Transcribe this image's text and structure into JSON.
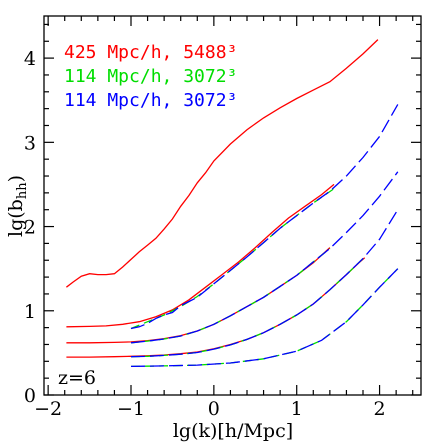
{
  "chart_data": {
    "type": "line",
    "title": "",
    "xlabel": "lg(k)[h/Mpc]",
    "ylabel": "lg(b",
    "ylabel_sub": "hh",
    "ylabel_close": ")",
    "xlim": [
      -2.05,
      2.5
    ],
    "ylim": [
      0,
      4.5
    ],
    "x_ticks": [
      -2,
      -1,
      0,
      1,
      2
    ],
    "x_tick_labels": [
      "−2",
      "−1",
      "0",
      "1",
      "2"
    ],
    "y_ticks": [
      0,
      1,
      2,
      3,
      4
    ],
    "y_tick_labels": [
      "0",
      "1",
      "2",
      "3",
      "4"
    ],
    "annotation": "z=6",
    "legend_position": "top-left",
    "legend": [
      {
        "label": "425 Mpc/h, 5488³",
        "color": "#ff0000"
      },
      {
        "label": "114 Mpc/h, 3072³",
        "color": "#00dd00"
      },
      {
        "label": "114 Mpc/h, 3072³",
        "color": "#0000ff"
      }
    ],
    "series": [
      {
        "name": "425 Mpc/h, 5488³",
        "color": "#ff0000",
        "style": "solid",
        "points": [
          [
            -1.78,
            1.28
          ],
          [
            -1.7,
            1.34
          ],
          [
            -1.6,
            1.41
          ],
          [
            -1.5,
            1.44
          ],
          [
            -1.4,
            1.43
          ],
          [
            -1.3,
            1.43
          ],
          [
            -1.2,
            1.44
          ],
          [
            -1.1,
            1.52
          ],
          [
            -1.0,
            1.61
          ],
          [
            -0.9,
            1.7
          ],
          [
            -0.8,
            1.78
          ],
          [
            -0.7,
            1.86
          ],
          [
            -0.6,
            1.97
          ],
          [
            -0.5,
            2.09
          ],
          [
            -0.4,
            2.24
          ],
          [
            -0.3,
            2.37
          ],
          [
            -0.2,
            2.52
          ],
          [
            -0.1,
            2.64
          ],
          [
            0.0,
            2.78
          ],
          [
            0.2,
            2.98
          ],
          [
            0.4,
            3.15
          ],
          [
            0.6,
            3.29
          ],
          [
            0.8,
            3.41
          ],
          [
            1.0,
            3.52
          ],
          [
            1.2,
            3.62
          ],
          [
            1.4,
            3.72
          ],
          [
            1.6,
            3.88
          ],
          [
            1.8,
            4.05
          ],
          [
            1.98,
            4.22
          ]
        ]
      },
      {
        "name": "425 Mpc/h, 5488³",
        "color": "#ff0000",
        "style": "solid",
        "points": [
          [
            -1.78,
            0.81
          ],
          [
            -1.5,
            0.815
          ],
          [
            -1.3,
            0.82
          ],
          [
            -1.1,
            0.84
          ],
          [
            -0.9,
            0.87
          ],
          [
            -0.7,
            0.93
          ],
          [
            -0.5,
            1.01
          ],
          [
            -0.3,
            1.13
          ],
          [
            -0.1,
            1.28
          ],
          [
            0.1,
            1.43
          ],
          [
            0.3,
            1.58
          ],
          [
            0.5,
            1.75
          ],
          [
            0.7,
            1.93
          ],
          [
            0.9,
            2.1
          ],
          [
            1.1,
            2.24
          ],
          [
            1.3,
            2.38
          ],
          [
            1.45,
            2.5
          ]
        ]
      },
      {
        "name": "425 Mpc/h, 5488³",
        "color": "#ff0000",
        "style": "solid",
        "points": [
          [
            -1.78,
            0.62
          ],
          [
            -1.5,
            0.62
          ],
          [
            -1.2,
            0.625
          ],
          [
            -1.0,
            0.63
          ],
          [
            -0.8,
            0.645
          ],
          [
            -0.6,
            0.67
          ],
          [
            -0.4,
            0.705
          ],
          [
            -0.2,
            0.76
          ],
          [
            0.0,
            0.84
          ],
          [
            0.2,
            0.94
          ],
          [
            0.4,
            1.05
          ],
          [
            0.6,
            1.16
          ],
          [
            0.8,
            1.29
          ],
          [
            1.0,
            1.42
          ],
          [
            1.2,
            1.57
          ],
          [
            1.4,
            1.75
          ]
        ]
      },
      {
        "name": "425 Mpc/h, 5488³",
        "color": "#ff0000",
        "style": "solid",
        "points": [
          [
            -1.78,
            0.45
          ],
          [
            -1.5,
            0.45
          ],
          [
            -1.2,
            0.455
          ],
          [
            -1.0,
            0.46
          ],
          [
            -0.8,
            0.465
          ],
          [
            -0.6,
            0.475
          ],
          [
            -0.4,
            0.49
          ],
          [
            -0.2,
            0.51
          ],
          [
            0.0,
            0.55
          ],
          [
            0.2,
            0.6
          ],
          [
            0.4,
            0.66
          ],
          [
            0.6,
            0.74
          ],
          [
            0.8,
            0.84
          ],
          [
            1.0,
            0.95
          ],
          [
            1.2,
            1.08
          ],
          [
            1.4,
            1.25
          ],
          [
            1.6,
            1.43
          ],
          [
            1.75,
            1.57
          ],
          [
            1.82,
            1.63
          ]
        ]
      },
      {
        "name": "114 Mpc/h, 3072³",
        "color": "#00dd00",
        "style": "dashed",
        "points": [
          [
            -1.0,
            0.79
          ],
          [
            -0.8,
            0.87
          ],
          [
            -0.6,
            0.95
          ],
          [
            -0.4,
            1.05
          ],
          [
            -0.2,
            1.17
          ],
          [
            0.0,
            1.32
          ],
          [
            0.2,
            1.48
          ],
          [
            0.4,
            1.64
          ],
          [
            0.6,
            1.81
          ],
          [
            0.8,
            1.98
          ],
          [
            1.0,
            2.13
          ],
          [
            1.2,
            2.28
          ],
          [
            1.45,
            2.45
          ]
        ]
      },
      {
        "name": "114 Mpc/h, 3072³",
        "color": "#00dd00",
        "style": "dashed",
        "points": [
          [
            -1.0,
            0.62
          ],
          [
            -0.8,
            0.64
          ],
          [
            -0.6,
            0.665
          ],
          [
            -0.4,
            0.7
          ],
          [
            -0.2,
            0.76
          ],
          [
            0.0,
            0.84
          ],
          [
            0.2,
            0.94
          ],
          [
            0.4,
            1.05
          ],
          [
            0.6,
            1.16
          ],
          [
            0.8,
            1.29
          ],
          [
            1.0,
            1.42
          ],
          [
            1.2,
            1.58
          ],
          [
            1.4,
            1.74
          ]
        ]
      },
      {
        "name": "114 Mpc/h, 3072³",
        "color": "#00dd00",
        "style": "dashed",
        "points": [
          [
            -1.0,
            0.455
          ],
          [
            -0.8,
            0.46
          ],
          [
            -0.6,
            0.47
          ],
          [
            -0.4,
            0.485
          ],
          [
            -0.2,
            0.505
          ],
          [
            0.0,
            0.545
          ],
          [
            0.2,
            0.595
          ],
          [
            0.4,
            0.66
          ],
          [
            0.6,
            0.74
          ],
          [
            0.8,
            0.84
          ],
          [
            1.0,
            0.95
          ],
          [
            1.2,
            1.08
          ],
          [
            1.4,
            1.25
          ],
          [
            1.6,
            1.43
          ],
          [
            1.8,
            1.62
          ]
        ]
      },
      {
        "name": "114 Mpc/h, 3072³",
        "color": "#00dd00",
        "style": "dashed",
        "points": [
          [
            -1.0,
            0.34
          ],
          [
            -0.6,
            0.345
          ],
          [
            -0.2,
            0.355
          ],
          [
            0.2,
            0.38
          ],
          [
            0.6,
            0.43
          ],
          [
            1.0,
            0.52
          ],
          [
            1.3,
            0.65
          ],
          [
            1.6,
            0.87
          ],
          [
            1.8,
            1.07
          ],
          [
            2.0,
            1.28
          ],
          [
            2.22,
            1.5
          ]
        ]
      },
      {
        "name": "114 Mpc/h, 3072³",
        "color": "#0000ff",
        "style": "longdash",
        "points": [
          [
            -1.0,
            0.79
          ],
          [
            -0.9,
            0.81
          ],
          [
            -0.8,
            0.85
          ],
          [
            -0.7,
            0.91
          ],
          [
            -0.6,
            0.95
          ],
          [
            -0.5,
            0.98
          ],
          [
            -0.4,
            1.06
          ],
          [
            -0.3,
            1.11
          ],
          [
            -0.2,
            1.16
          ],
          [
            0.0,
            1.32
          ],
          [
            0.2,
            1.48
          ],
          [
            0.4,
            1.64
          ],
          [
            0.6,
            1.81
          ],
          [
            0.8,
            1.98
          ],
          [
            1.0,
            2.13
          ],
          [
            1.2,
            2.28
          ],
          [
            1.4,
            2.42
          ],
          [
            1.6,
            2.6
          ],
          [
            1.8,
            2.82
          ],
          [
            2.0,
            3.07
          ],
          [
            2.22,
            3.45
          ]
        ]
      },
      {
        "name": "114 Mpc/h, 3072³",
        "color": "#0000ff",
        "style": "longdash",
        "points": [
          [
            -1.0,
            0.62
          ],
          [
            -0.8,
            0.64
          ],
          [
            -0.6,
            0.665
          ],
          [
            -0.4,
            0.7
          ],
          [
            -0.2,
            0.76
          ],
          [
            0.0,
            0.84
          ],
          [
            0.2,
            0.94
          ],
          [
            0.4,
            1.05
          ],
          [
            0.6,
            1.16
          ],
          [
            0.8,
            1.29
          ],
          [
            1.0,
            1.42
          ],
          [
            1.2,
            1.58
          ],
          [
            1.4,
            1.74
          ],
          [
            1.6,
            1.93
          ],
          [
            1.8,
            2.13
          ],
          [
            2.0,
            2.36
          ],
          [
            2.22,
            2.65
          ]
        ]
      },
      {
        "name": "114 Mpc/h, 3072³",
        "color": "#0000ff",
        "style": "longdash",
        "points": [
          [
            -1.0,
            0.455
          ],
          [
            -0.8,
            0.46
          ],
          [
            -0.6,
            0.47
          ],
          [
            -0.4,
            0.485
          ],
          [
            -0.2,
            0.505
          ],
          [
            0.0,
            0.545
          ],
          [
            0.2,
            0.595
          ],
          [
            0.4,
            0.66
          ],
          [
            0.6,
            0.74
          ],
          [
            0.8,
            0.84
          ],
          [
            1.0,
            0.95
          ],
          [
            1.2,
            1.08
          ],
          [
            1.4,
            1.25
          ],
          [
            1.6,
            1.43
          ],
          [
            1.8,
            1.62
          ],
          [
            2.0,
            1.85
          ],
          [
            2.22,
            2.2
          ]
        ]
      },
      {
        "name": "114 Mpc/h, 3072³",
        "color": "#0000ff",
        "style": "longdash",
        "points": [
          [
            -1.0,
            0.34
          ],
          [
            -0.6,
            0.345
          ],
          [
            -0.2,
            0.355
          ],
          [
            0.2,
            0.38
          ],
          [
            0.6,
            0.43
          ],
          [
            1.0,
            0.52
          ],
          [
            1.3,
            0.65
          ],
          [
            1.6,
            0.87
          ],
          [
            1.8,
            1.07
          ],
          [
            2.0,
            1.28
          ],
          [
            2.22,
            1.5
          ]
        ]
      }
    ]
  }
}
